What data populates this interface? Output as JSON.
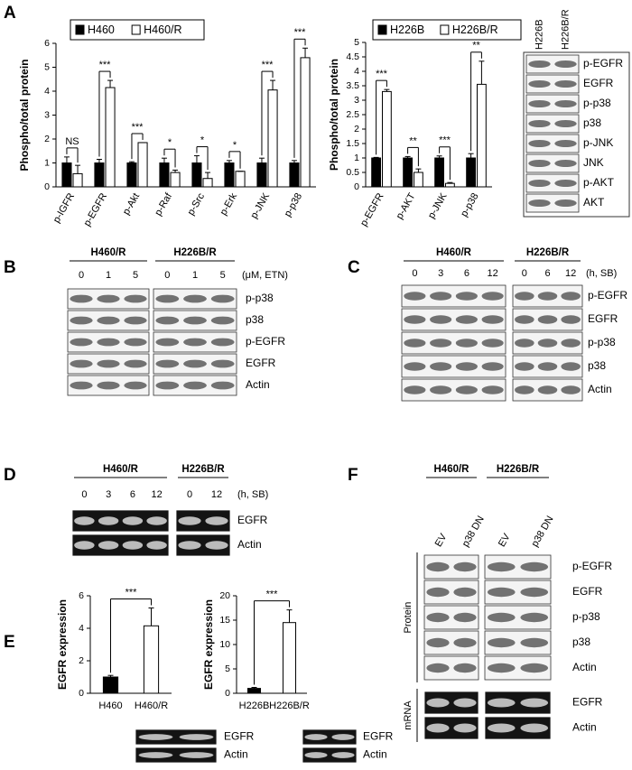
{
  "chart_data": [
    {
      "type": "bar",
      "ylabel": "Phospho/total protein",
      "categories": [
        "p-IGFR",
        "p-EGFR",
        "p-Akt",
        "p-Raf",
        "p-Src",
        "p-Erk",
        "p-JNK",
        "p-p38"
      ],
      "series": [
        {
          "name": "H460",
          "color": "#000000",
          "values": [
            1,
            1,
            1,
            1,
            1,
            1,
            1,
            1
          ],
          "errors": [
            0.25,
            0.15,
            0.05,
            0.2,
            0.3,
            0.1,
            0.2,
            0.1
          ]
        },
        {
          "name": "H460/R",
          "color": "#ffffff",
          "values": [
            0.55,
            4.15,
            1.85,
            0.6,
            0.35,
            0.65,
            4.05,
            5.4
          ],
          "errors": [
            0.35,
            0.3,
            0,
            0.1,
            0.25,
            0,
            0.4,
            0.4
          ]
        }
      ],
      "annotations": [
        "NS",
        "***",
        "***",
        "*",
        "*",
        "*",
        "***",
        "***"
      ],
      "ylim": [
        0,
        6
      ],
      "yticks": [
        0,
        1,
        2,
        3,
        4,
        5,
        6
      ]
    },
    {
      "type": "bar",
      "ylabel": "Phospho/total protein",
      "categories": [
        "p-EGFR",
        "p-AKT",
        "p-JNK",
        "p-p38"
      ],
      "series": [
        {
          "name": "H226B",
          "color": "#000000",
          "values": [
            1,
            1,
            1,
            1
          ],
          "errors": [
            0.02,
            0.05,
            0.07,
            0.15
          ]
        },
        {
          "name": "H226B/R",
          "color": "#ffffff",
          "values": [
            3.3,
            0.5,
            0.12,
            3.55
          ],
          "errors": [
            0.07,
            0.12,
            0.03,
            0.8
          ]
        }
      ],
      "annotations": [
        "***",
        "**",
        "***",
        "**"
      ],
      "ylim": [
        0,
        5
      ],
      "yticks": [
        0,
        0.5,
        1,
        1.5,
        2,
        2.5,
        3,
        3.5,
        4,
        4.5,
        5
      ]
    },
    {
      "type": "bar",
      "ylabel": "EGFR expression",
      "categories": [
        "H460",
        "H460/R"
      ],
      "values": [
        1,
        4.15
      ],
      "errors": [
        0.1,
        1.1
      ],
      "colors": [
        "#000000",
        "#ffffff"
      ],
      "annotation": "***",
      "ylim": [
        0,
        6
      ],
      "yticks": [
        0,
        2,
        4,
        6
      ]
    },
    {
      "type": "bar",
      "ylabel": "EGFR expression",
      "categories": [
        "H226B",
        "H226B/R"
      ],
      "values": [
        1,
        14.5
      ],
      "errors": [
        0.2,
        2.6
      ],
      "colors": [
        "#000000",
        "#ffffff"
      ],
      "annotation": "***",
      "ylim": [
        0,
        20
      ],
      "yticks": [
        0,
        5,
        10,
        15,
        20
      ]
    }
  ],
  "panel_letters": [
    "A",
    "B",
    "C",
    "D",
    "E",
    "F"
  ],
  "blots": {
    "A": {
      "groups": [
        {
          "lanes": [
            "H226B",
            "H226B/R"
          ]
        }
      ],
      "rows": [
        "p-EGFR",
        "EGFR",
        "p-p38",
        "p38",
        "p-JNK",
        "JNK",
        "p-AKT",
        "AKT"
      ]
    },
    "B": {
      "groups": [
        {
          "name": "H460/R",
          "lanes": [
            "0",
            "1",
            "5"
          ]
        },
        {
          "name": "H226B/R",
          "lanes": [
            "0",
            "1",
            "5"
          ]
        }
      ],
      "unit": "(μM, ETN)",
      "rows": [
        "p-p38",
        "p38",
        "p-EGFR",
        "EGFR",
        "Actin"
      ]
    },
    "C": {
      "groups": [
        {
          "name": "H460/R",
          "lanes": [
            "0",
            "3",
            "6",
            "12"
          ]
        },
        {
          "name": "H226B/R",
          "lanes": [
            "0",
            "6",
            "12"
          ]
        }
      ],
      "unit": "(h, SB)",
      "rows": [
        "p-EGFR",
        "EGFR",
        "p-p38",
        "p38",
        "Actin"
      ]
    },
    "D": {
      "groups": [
        {
          "name": "H460/R",
          "lanes": [
            "0",
            "3",
            "6",
            "12"
          ]
        },
        {
          "name": "H226B/R",
          "lanes": [
            "0",
            "12"
          ]
        }
      ],
      "unit": "(h, SB)",
      "rows": [
        "EGFR",
        "Actin"
      ]
    },
    "E1": {
      "rows": [
        "EGFR",
        "Actin"
      ]
    },
    "E2": {
      "rows": [
        "EGFR",
        "Actin"
      ]
    },
    "F": {
      "groups": [
        {
          "name": "H460/R",
          "lanes": [
            "EV",
            "p38 DN"
          ]
        },
        {
          "name": "H226B/R",
          "lanes": [
            "EV",
            "p38 DN"
          ]
        }
      ],
      "label": "Protein",
      "rows": [
        "p-EGFR",
        "EGFR",
        "p-p38",
        "p38",
        "Actin"
      ]
    },
    "F2": {
      "label": "mRNA",
      "rows": [
        "EGFR",
        "Actin"
      ]
    }
  }
}
